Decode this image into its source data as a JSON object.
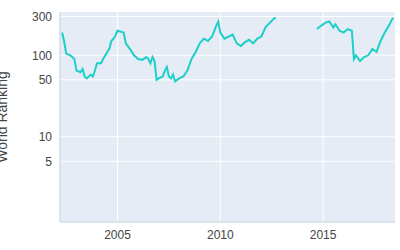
{
  "chart_data": {
    "type": "line",
    "y_label": "World Ranking",
    "color": "#1ccfc9",
    "log": "y",
    "grid": true,
    "xlim": [
      2002.2,
      2018.5
    ],
    "xticks": [
      2005,
      2010,
      2015
    ],
    "ylim": [
      0.9,
      340
    ],
    "yticks": [
      5,
      10,
      50,
      100,
      300
    ],
    "x": [
      2002.3,
      2002.4,
      2002.5,
      2002.7,
      2002.9,
      2003.0,
      2003.2,
      2003.3,
      2003.4,
      2003.5,
      2003.7,
      2003.8,
      2003.9,
      2004.0,
      2004.2,
      2004.3,
      2004.5,
      2004.6,
      2004.7,
      2004.8,
      2004.9,
      2005.0,
      2005.3,
      2005.4,
      2005.6,
      2005.8,
      2006.0,
      2006.2,
      2006.4,
      2006.5,
      2006.6,
      2006.7,
      2006.8,
      2006.9,
      2007.0,
      2007.2,
      2007.3,
      2007.4,
      2007.5,
      2007.6,
      2007.7,
      2007.8,
      2008.0,
      2008.2,
      2008.4,
      2008.6,
      2008.8,
      2009.0,
      2009.2,
      2009.4,
      2009.6,
      2009.8,
      2009.9,
      2010.0,
      2010.2,
      2010.4,
      2010.6,
      2010.8,
      2011.0,
      2011.2,
      2011.4,
      2011.6,
      2011.8,
      2012.0,
      2012.2,
      2012.4,
      2012.6,
      2012.7,
      2013.5,
      2014.7,
      2014.9,
      2015.0,
      2015.1,
      2015.3,
      2015.5,
      2015.6,
      2015.8,
      2016.0,
      2016.2,
      2016.4,
      2016.5,
      2016.6,
      2016.8,
      2017.0,
      2017.2,
      2017.4,
      2017.6,
      2017.8,
      2018.0,
      2018.2,
      2018.4
    ],
    "values": [
      190,
      150,
      105,
      100,
      90,
      65,
      62,
      68,
      55,
      52,
      58,
      55,
      65,
      80,
      80,
      90,
      110,
      120,
      150,
      160,
      175,
      200,
      190,
      140,
      120,
      100,
      90,
      88,
      95,
      90,
      80,
      95,
      85,
      50,
      52,
      55,
      65,
      72,
      55,
      52,
      58,
      48,
      52,
      55,
      65,
      90,
      110,
      140,
      160,
      150,
      170,
      230,
      260,
      190,
      160,
      170,
      180,
      140,
      130,
      145,
      155,
      140,
      160,
      170,
      220,
      250,
      280,
      290,
      null,
      210,
      230,
      240,
      250,
      260,
      220,
      240,
      200,
      190,
      210,
      200,
      90,
      100,
      85,
      95,
      100,
      120,
      110,
      150,
      190,
      230,
      290
    ]
  }
}
